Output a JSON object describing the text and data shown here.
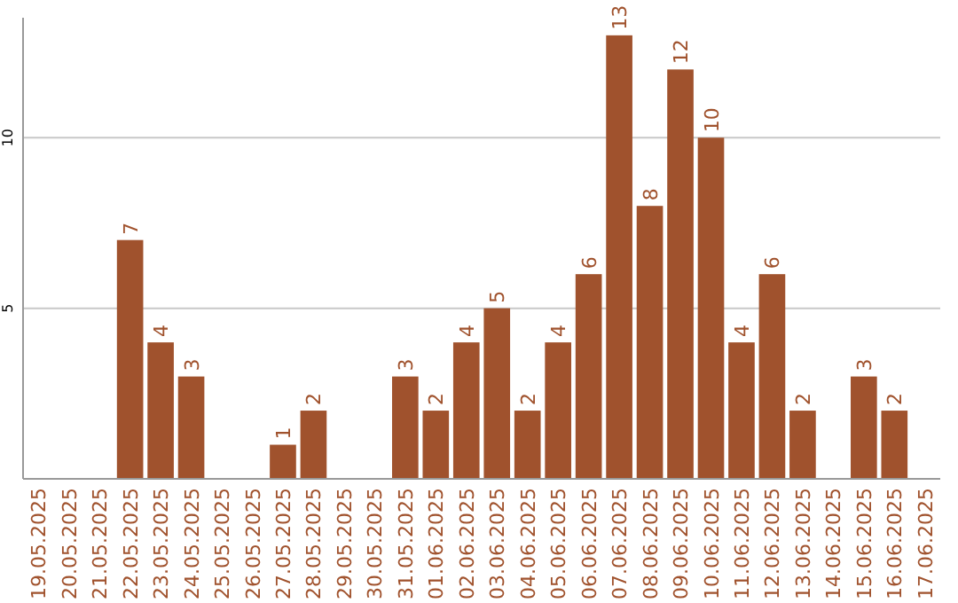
{
  "chart_data": {
    "type": "bar",
    "categories": [
      "19.05.2025",
      "20.05.2025",
      "21.05.2025",
      "22.05.2025",
      "23.05.2025",
      "24.05.2025",
      "25.05.2025",
      "26.05.2025",
      "27.05.2025",
      "28.05.2025",
      "29.05.2025",
      "30.05.2025",
      "31.05.2025",
      "01.06.2025",
      "02.06.2025",
      "03.06.2025",
      "04.06.2025",
      "05.06.2025",
      "06.06.2025",
      "07.06.2025",
      "08.06.2025",
      "09.06.2025",
      "10.06.2025",
      "11.06.2025",
      "12.06.2025",
      "13.06.2025",
      "14.06.2025",
      "15.06.2025",
      "16.06.2025",
      "17.06.2025"
    ],
    "values": [
      null,
      null,
      null,
      7,
      4,
      3,
      null,
      null,
      1,
      2,
      null,
      null,
      3,
      2,
      4,
      5,
      2,
      4,
      6,
      13,
      8,
      12,
      10,
      4,
      6,
      2,
      null,
      3,
      2,
      null
    ],
    "color": "#a0522d",
    "ylim": [
      0,
      13.1
    ],
    "yticks": [
      5,
      10
    ],
    "grid": "y",
    "data_labels": true
  }
}
